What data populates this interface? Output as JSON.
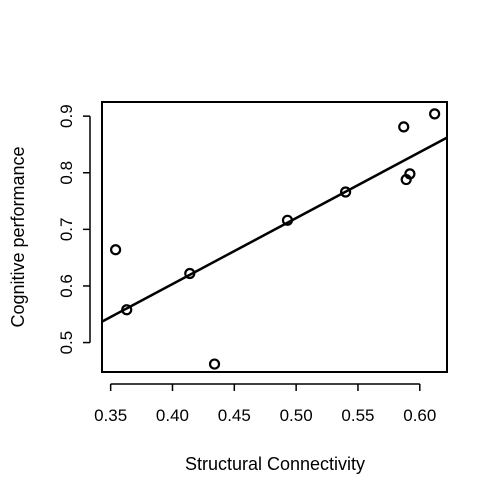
{
  "chart_data": {
    "type": "scatter",
    "title": "",
    "xlabel": "Structural Connectivity",
    "ylabel": "Cognitive performance",
    "xlim": [
      0.343,
      0.622
    ],
    "ylim": [
      0.448,
      0.925
    ],
    "xticks": [
      "0.35",
      "0.40",
      "0.45",
      "0.50",
      "0.55",
      "0.60"
    ],
    "yticks": [
      "0.5",
      "0.6",
      "0.7",
      "0.8",
      "0.9"
    ],
    "grid": false,
    "points": [
      {
        "x": 0.354,
        "y": 0.664
      },
      {
        "x": 0.363,
        "y": 0.558
      },
      {
        "x": 0.414,
        "y": 0.622
      },
      {
        "x": 0.434,
        "y": 0.462
      },
      {
        "x": 0.493,
        "y": 0.716
      },
      {
        "x": 0.54,
        "y": 0.766
      },
      {
        "x": 0.587,
        "y": 0.881
      },
      {
        "x": 0.589,
        "y": 0.788
      },
      {
        "x": 0.592,
        "y": 0.798
      },
      {
        "x": 0.612,
        "y": 0.904
      }
    ],
    "fit_line": {
      "x": [
        0.343,
        0.622
      ],
      "y": [
        0.537,
        0.862
      ]
    }
  }
}
